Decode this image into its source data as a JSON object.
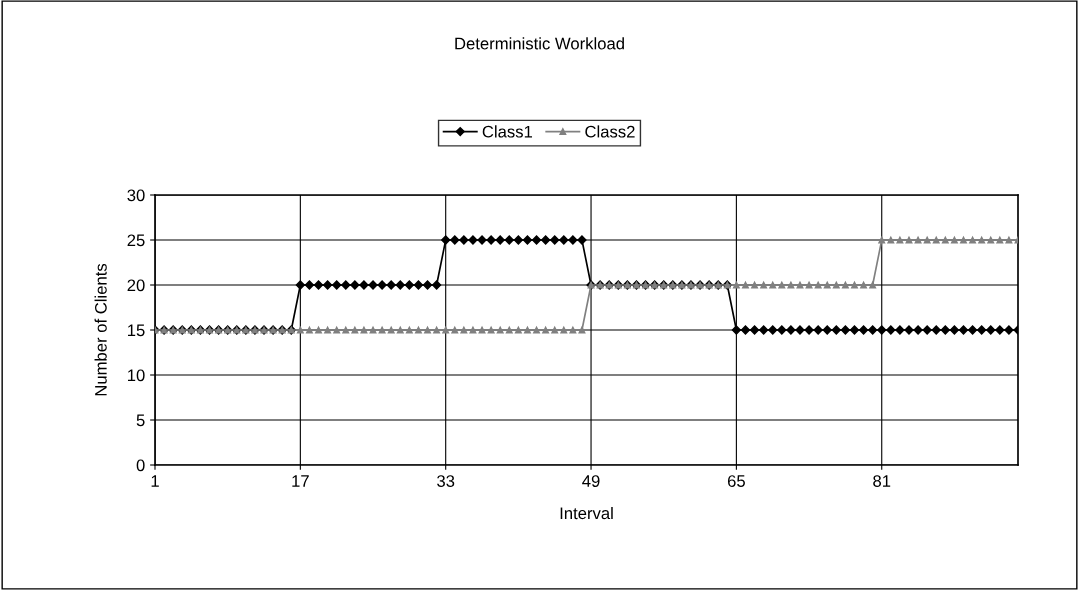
{
  "chart_data": {
    "type": "line",
    "title": "Deterministic Workload",
    "xlabel": "Interval",
    "ylabel": "Number of Clients",
    "categories": [
      "1",
      null,
      null,
      null,
      null,
      null,
      null,
      null,
      null,
      null,
      null,
      null,
      null,
      null,
      null,
      null,
      "17",
      null,
      null,
      null,
      null,
      null,
      null,
      null,
      null,
      null,
      null,
      null,
      null,
      null,
      null,
      null,
      "33",
      null,
      null,
      null,
      null,
      null,
      null,
      null,
      null,
      null,
      null,
      null,
      null,
      null,
      null,
      null,
      "49",
      null,
      null,
      null,
      null,
      null,
      null,
      null,
      null,
      null,
      null,
      null,
      null,
      null,
      null,
      null,
      "65",
      null,
      null,
      null,
      null,
      null,
      null,
      null,
      null,
      null,
      null,
      null,
      null,
      null,
      null,
      null,
      "81",
      null,
      null,
      null,
      null,
      null,
      null,
      null,
      null,
      null,
      null,
      null,
      null,
      null,
      null,
      null
    ],
    "series": [
      {
        "name": "Class1",
        "color": "#000000",
        "marker": "diamond",
        "values": [
          15,
          15,
          15,
          15,
          15,
          15,
          15,
          15,
          15,
          15,
          15,
          15,
          15,
          15,
          15,
          15,
          20,
          20,
          20,
          20,
          20,
          20,
          20,
          20,
          20,
          20,
          20,
          20,
          20,
          20,
          20,
          20,
          25,
          25,
          25,
          25,
          25,
          25,
          25,
          25,
          25,
          25,
          25,
          25,
          25,
          25,
          25,
          25,
          20,
          20,
          20,
          20,
          20,
          20,
          20,
          20,
          20,
          20,
          20,
          20,
          20,
          20,
          20,
          20,
          15,
          15,
          15,
          15,
          15,
          15,
          15,
          15,
          15,
          15,
          15,
          15,
          15,
          15,
          15,
          15,
          15,
          15,
          15,
          15,
          15,
          15,
          15,
          15,
          15,
          15,
          15,
          15,
          15,
          15,
          15,
          15
        ]
      },
      {
        "name": "Class2",
        "color": "#808080",
        "marker": "triangle",
        "values": [
          15,
          15,
          15,
          15,
          15,
          15,
          15,
          15,
          15,
          15,
          15,
          15,
          15,
          15,
          15,
          15,
          15,
          15,
          15,
          15,
          15,
          15,
          15,
          15,
          15,
          15,
          15,
          15,
          15,
          15,
          15,
          15,
          15,
          15,
          15,
          15,
          15,
          15,
          15,
          15,
          15,
          15,
          15,
          15,
          15,
          15,
          15,
          15,
          20,
          20,
          20,
          20,
          20,
          20,
          20,
          20,
          20,
          20,
          20,
          20,
          20,
          20,
          20,
          20,
          20,
          20,
          20,
          20,
          20,
          20,
          20,
          20,
          20,
          20,
          20,
          20,
          20,
          20,
          20,
          20,
          25,
          25,
          25,
          25,
          25,
          25,
          25,
          25,
          25,
          25,
          25,
          25,
          25,
          25,
          25,
          25
        ]
      }
    ],
    "ylim": [
      0,
      30
    ],
    "yticks": [
      0,
      5,
      10,
      15,
      20,
      25,
      30
    ],
    "grid": true,
    "legend": "top",
    "line_style": "solid"
  }
}
